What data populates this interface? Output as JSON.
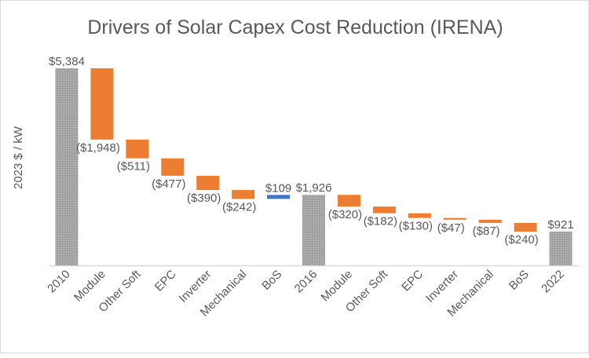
{
  "chart_data": {
    "type": "waterfall",
    "title": "Drivers of Solar Capex Cost Reduction (IRENA)",
    "xlabel": "",
    "ylabel": "2023 $ / kW",
    "ylim": [
      0,
      5384
    ],
    "grid": false,
    "legend": "none",
    "categories": [
      "2010",
      "Module",
      "Other Soft",
      "EPC",
      "Inverter",
      "Mechanical",
      "BoS",
      "2016",
      "Module",
      "Other Soft",
      "EPC",
      "Inverter",
      "Mechanical",
      "BoS",
      "2022"
    ],
    "values": [
      5384,
      -1948,
      -511,
      -477,
      -390,
      -242,
      109,
      1926,
      -320,
      -182,
      -130,
      -47,
      -87,
      -240,
      921
    ],
    "kinds": [
      "total",
      "decrease",
      "decrease",
      "decrease",
      "decrease",
      "decrease",
      "increase",
      "total",
      "decrease",
      "decrease",
      "decrease",
      "decrease",
      "decrease",
      "decrease",
      "total"
    ],
    "data_labels": [
      "$5,384",
      "($1,948)",
      "($511)",
      "($477)",
      "($390)",
      "($242)",
      "$109",
      "$1,926",
      "($320)",
      "($182)",
      "($130)",
      "($47)",
      "($87)",
      "($240)",
      "$921"
    ],
    "colors": {
      "total": "#a5a5a5",
      "decrease": "#ed7d31",
      "increase": "#4472c4"
    }
  }
}
